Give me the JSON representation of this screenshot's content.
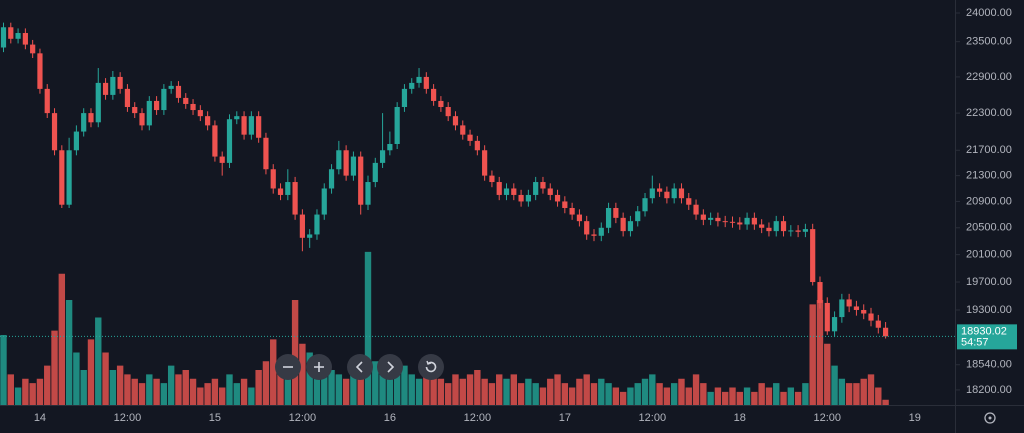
{
  "chart_data": {
    "type": "candlestick",
    "log_scale": true,
    "grid": false,
    "up_color": "#26a69a",
    "down_color": "#ef5350",
    "volume_up_color": "#1f8a80",
    "volume_down_color": "#c24947",
    "categories": [
      null,
      null,
      null,
      null,
      null,
      "14",
      null,
      null,
      null,
      null,
      null,
      null,
      null,
      null,
      null,
      null,
      null,
      "12:00",
      null,
      null,
      null,
      null,
      null,
      null,
      null,
      null,
      null,
      null,
      null,
      "15",
      null,
      null,
      null,
      null,
      null,
      null,
      null,
      null,
      null,
      null,
      null,
      "12:00",
      null,
      null,
      null,
      null,
      null,
      null,
      null,
      null,
      null,
      null,
      null,
      "16",
      null,
      null,
      null,
      null,
      null,
      null,
      null,
      null,
      null,
      null,
      null,
      "12:00",
      null,
      null,
      null,
      null,
      null,
      null,
      null,
      null,
      null,
      null,
      null,
      "17",
      null,
      null,
      null,
      null,
      null,
      null,
      null,
      null,
      null,
      null,
      null,
      "12:00",
      null,
      null,
      null,
      null,
      null,
      null,
      null,
      null,
      null,
      null,
      null,
      "18",
      null,
      null,
      null,
      null,
      null,
      null,
      null,
      null,
      null,
      null,
      null,
      "12:00",
      null,
      null,
      null,
      null,
      null,
      null,
      null,
      null,
      null,
      null,
      null,
      "19"
    ],
    "open": [
      23400,
      23750,
      23550,
      23650,
      23450,
      23300,
      22700,
      22300,
      21700,
      20850,
      21700,
      22000,
      22300,
      22150,
      22800,
      22600,
      22900,
      22700,
      22400,
      22300,
      22100,
      22500,
      22350,
      22700,
      22750,
      22550,
      22450,
      22350,
      22250,
      22100,
      21600,
      21500,
      22200,
      22250,
      21950,
      22250,
      21900,
      21400,
      21100,
      21000,
      21200,
      20700,
      20350,
      20400,
      20700,
      21100,
      21400,
      21700,
      21300,
      21600,
      20850,
      21200,
      21500,
      21700,
      21800,
      22400,
      22700,
      22800,
      22900,
      22700,
      22500,
      22400,
      22250,
      22100,
      21950,
      21850,
      21700,
      21300,
      21200,
      21000,
      21100,
      21000,
      20900,
      21000,
      21200,
      21100,
      21000,
      20900,
      20800,
      20700,
      20600,
      20400,
      20380,
      20500,
      20800,
      20650,
      20450,
      20600,
      20750,
      20950,
      21100,
      21050,
      20950,
      21100,
      20950,
      20850,
      20700,
      20620,
      20650,
      20600,
      20590,
      20580,
      20550,
      20650,
      20550,
      20500,
      20450,
      20600,
      20450,
      20460,
      20440,
      20480,
      19700,
      19400,
      19000,
      19200,
      19450,
      19350,
      19300,
      19250,
      19150,
      19050,
      null,
      null,
      null,
      null
    ],
    "high": [
      23830,
      23830,
      23730,
      23730,
      23530,
      23380,
      22780,
      22380,
      21780,
      21900,
      22100,
      22380,
      22380,
      23050,
      22880,
      23000,
      22980,
      22780,
      22480,
      22380,
      22580,
      22580,
      22780,
      22830,
      22830,
      22630,
      22530,
      22430,
      22330,
      22180,
      21680,
      22280,
      22330,
      22330,
      22330,
      22330,
      21980,
      21480,
      21180,
      21400,
      21280,
      20780,
      20480,
      20780,
      21180,
      21480,
      21850,
      21780,
      21680,
      21680,
      21300,
      21580,
      22300,
      22000,
      22480,
      22780,
      22880,
      23050,
      22980,
      22780,
      22580,
      22480,
      22330,
      22180,
      22030,
      21930,
      21780,
      21380,
      21280,
      21180,
      21180,
      21080,
      21080,
      21280,
      21280,
      21180,
      21080,
      20980,
      20880,
      20780,
      20680,
      20480,
      20580,
      20880,
      20880,
      20730,
      20680,
      20830,
      21030,
      21300,
      21180,
      21130,
      21180,
      21180,
      21030,
      20930,
      20780,
      20730,
      20730,
      20680,
      20670,
      20660,
      20730,
      20730,
      20630,
      20580,
      20680,
      20680,
      20540,
      20540,
      20560,
      20560,
      19780,
      19480,
      19280,
      19530,
      19530,
      19430,
      19380,
      19330,
      19230,
      19130,
      null,
      null,
      null,
      null
    ],
    "low": [
      23320,
      23470,
      23470,
      23370,
      23220,
      22620,
      22220,
      21620,
      20800,
      20800,
      21620,
      21920,
      22070,
      22070,
      22520,
      22520,
      22620,
      22320,
      22220,
      22020,
      22020,
      22270,
      22270,
      22620,
      22470,
      22370,
      22270,
      22170,
      22020,
      21520,
      21300,
      21420,
      22120,
      21870,
      21870,
      21820,
      21320,
      21020,
      20920,
      20920,
      20620,
      20150,
      20200,
      20320,
      20620,
      21020,
      21320,
      21220,
      21220,
      20700,
      20770,
      21120,
      21420,
      21620,
      21720,
      22320,
      22620,
      22720,
      22620,
      22420,
      22320,
      22170,
      22020,
      21870,
      21770,
      21620,
      21220,
      21120,
      20920,
      20920,
      20920,
      20820,
      20820,
      20920,
      21020,
      20920,
      20820,
      20720,
      20620,
      20520,
      20320,
      20300,
      20300,
      20420,
      20570,
      20370,
      20370,
      20520,
      20670,
      20870,
      20970,
      20870,
      20870,
      20870,
      20770,
      20620,
      20540,
      20540,
      20520,
      20510,
      20500,
      20470,
      20470,
      20470,
      20420,
      20370,
      20370,
      20370,
      20370,
      20360,
      20360,
      19650,
      19320,
      18950,
      18920,
      19120,
      19270,
      19220,
      19170,
      19070,
      18970,
      18900,
      null,
      null,
      null,
      null
    ],
    "close": [
      23750,
      23550,
      23650,
      23450,
      23300,
      22700,
      22300,
      21700,
      20850,
      21700,
      22000,
      22300,
      22150,
      22800,
      22600,
      22900,
      22700,
      22400,
      22300,
      22100,
      22500,
      22350,
      22700,
      22750,
      22550,
      22450,
      22350,
      22250,
      22100,
      21600,
      21500,
      22200,
      22250,
      21950,
      22250,
      21900,
      21400,
      21100,
      21000,
      21200,
      20700,
      20350,
      20400,
      20700,
      21100,
      21400,
      21700,
      21300,
      21600,
      20850,
      21200,
      21500,
      21700,
      21800,
      22400,
      22700,
      22800,
      22900,
      22700,
      22500,
      22400,
      22250,
      22100,
      21950,
      21850,
      21700,
      21300,
      21200,
      21000,
      21100,
      21000,
      20900,
      21000,
      21200,
      21100,
      21000,
      20900,
      20800,
      20700,
      20600,
      20400,
      20380,
      20500,
      20800,
      20650,
      20450,
      20600,
      20750,
      20950,
      21100,
      21050,
      20950,
      21100,
      20950,
      20850,
      20700,
      20620,
      20650,
      20600,
      20590,
      20580,
      20550,
      20650,
      20550,
      20500,
      20450,
      20600,
      20450,
      20460,
      20440,
      20480,
      19700,
      19400,
      19000,
      19200,
      19450,
      19350,
      19300,
      19250,
      19150,
      19050,
      18930.02,
      null,
      null,
      null,
      null
    ],
    "volume": [
      80,
      35,
      20,
      30,
      25,
      30,
      45,
      85,
      150,
      120,
      60,
      40,
      75,
      100,
      60,
      40,
      45,
      35,
      30,
      25,
      35,
      30,
      25,
      45,
      35,
      40,
      30,
      20,
      25,
      30,
      20,
      35,
      25,
      30,
      20,
      40,
      50,
      75,
      45,
      35,
      120,
      70,
      60,
      50,
      45,
      40,
      35,
      30,
      35,
      40,
      175,
      50,
      35,
      30,
      40,
      45,
      35,
      30,
      40,
      35,
      30,
      25,
      35,
      30,
      35,
      40,
      30,
      25,
      35,
      30,
      35,
      25,
      30,
      25,
      20,
      30,
      35,
      25,
      20,
      30,
      35,
      25,
      30,
      25,
      20,
      15,
      20,
      25,
      30,
      35,
      25,
      20,
      25,
      30,
      20,
      35,
      25,
      15,
      20,
      15,
      20,
      15,
      20,
      15,
      25,
      20,
      25,
      15,
      20,
      15,
      25,
      115,
      120,
      70,
      45,
      30,
      25,
      25,
      30,
      35,
      20,
      6,
      null,
      null,
      null,
      null
    ],
    "ylim": [
      18000,
      24230
    ],
    "vlim": [
      0,
      200
    ],
    "yticks": [
      {
        "value": 24000,
        "label": "24000.00"
      },
      {
        "value": 23500,
        "label": "23500.00"
      },
      {
        "value": 22900,
        "label": "22900.00"
      },
      {
        "value": 22300,
        "label": "22300.00"
      },
      {
        "value": 21700,
        "label": "21700.00"
      },
      {
        "value": 21300,
        "label": "21300.00"
      },
      {
        "value": 20900,
        "label": "20900.00"
      },
      {
        "value": 20500,
        "label": "20500.00"
      },
      {
        "value": 20100,
        "label": "20100.00"
      },
      {
        "value": 19700,
        "label": "19700.00"
      },
      {
        "value": 19300,
        "label": "19300.00"
      },
      {
        "value": 18540,
        "label": "18540.00"
      },
      {
        "value": 18200,
        "label": "18200.00"
      }
    ],
    "countdown": "54:57"
  }
}
